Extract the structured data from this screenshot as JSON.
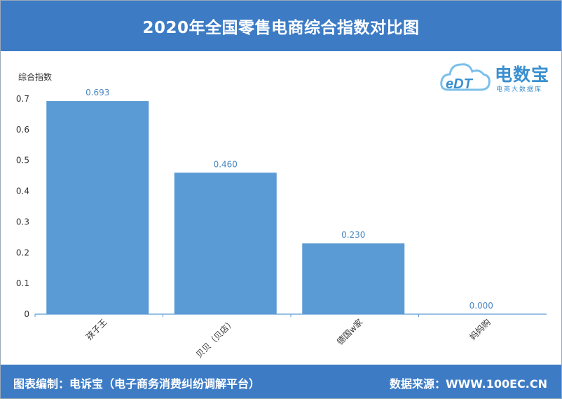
{
  "header": {
    "title": "2020年全国零售电商综合指数对比图"
  },
  "footer": {
    "left": "图表编制：电诉宝（电子商务消费纠纷调解平台）",
    "right": "数据来源：WWW.100EC.CN"
  },
  "logo": {
    "name": "电数宝",
    "sub": "电商大数据库",
    "mark": "eDT"
  },
  "chart_data": {
    "type": "bar",
    "title": "2020年全国零售电商综合指数对比图",
    "ylabel": "综合指数",
    "xlabel": "",
    "categories": [
      "孩子王",
      "贝贝（贝店）",
      "德国w家",
      "妈妈购"
    ],
    "values": [
      0.693,
      0.46,
      0.23,
      0.0
    ],
    "value_labels": [
      "0.693",
      "0.460",
      "0.230",
      "0.000"
    ],
    "yticks": [
      "0",
      "0.1",
      "0.2",
      "0.3",
      "0.4",
      "0.5",
      "0.6",
      "0.7"
    ],
    "ylim": [
      0,
      0.7
    ],
    "grid": false,
    "bar_color": "#5b9bd5",
    "label_color": "#4a86c0"
  }
}
